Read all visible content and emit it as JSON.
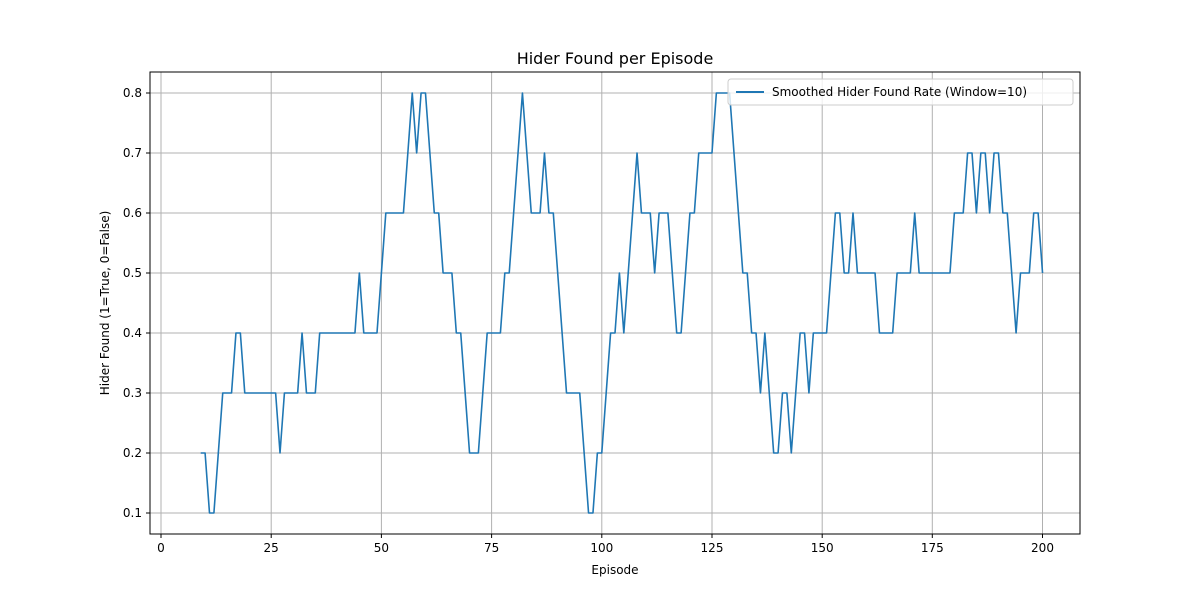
{
  "chart_data": {
    "type": "line",
    "title": "Hider Found per Episode",
    "xlabel": "Episode",
    "ylabel": "Hider Found (1=True, 0=False)",
    "xlim": [
      -2.5,
      208.5
    ],
    "ylim": [
      0.065,
      0.835
    ],
    "xticks": [
      0,
      25,
      50,
      75,
      100,
      125,
      150,
      175,
      200
    ],
    "yticks": [
      0.1,
      0.2,
      0.3,
      0.4,
      0.5,
      0.6,
      0.7,
      0.8
    ],
    "xtick_labels": [
      "0",
      "25",
      "50",
      "75",
      "100",
      "125",
      "150",
      "175",
      "200"
    ],
    "ytick_labels": [
      "0.1",
      "0.2",
      "0.3",
      "0.4",
      "0.5",
      "0.6",
      "0.7",
      "0.8"
    ],
    "grid": true,
    "legend": {
      "position": "top-right"
    },
    "series": [
      {
        "name": "Smoothed Hider Found Rate (Window=10)",
        "color": "#1f77b4",
        "x_start": 9,
        "values": [
          0.2,
          0.2,
          0.1,
          0.1,
          0.2,
          0.3,
          0.3,
          0.3,
          0.4,
          0.4,
          0.3,
          0.3,
          0.3,
          0.3,
          0.3,
          0.3,
          0.3,
          0.3,
          0.2,
          0.3,
          0.3,
          0.3,
          0.3,
          0.4,
          0.3,
          0.3,
          0.3,
          0.4,
          0.4,
          0.4,
          0.4,
          0.4,
          0.4,
          0.4,
          0.4,
          0.4,
          0.5,
          0.4,
          0.4,
          0.4,
          0.4,
          0.5,
          0.6,
          0.6,
          0.6,
          0.6,
          0.6,
          0.7,
          0.8,
          0.7,
          0.8,
          0.8,
          0.7,
          0.6,
          0.6,
          0.5,
          0.5,
          0.5,
          0.4,
          0.4,
          0.3,
          0.2,
          0.2,
          0.2,
          0.3,
          0.4,
          0.4,
          0.4,
          0.4,
          0.5,
          0.5,
          0.6,
          0.7,
          0.8,
          0.7,
          0.6,
          0.6,
          0.6,
          0.7,
          0.6,
          0.6,
          0.5,
          0.4,
          0.3,
          0.3,
          0.3,
          0.3,
          0.2,
          0.1,
          0.1,
          0.2,
          0.2,
          0.3,
          0.4,
          0.4,
          0.5,
          0.4,
          0.5,
          0.6,
          0.7,
          0.6,
          0.6,
          0.6,
          0.5,
          0.6,
          0.6,
          0.6,
          0.5,
          0.4,
          0.4,
          0.5,
          0.6,
          0.6,
          0.7,
          0.7,
          0.7,
          0.7,
          0.8,
          0.8,
          0.8,
          0.8,
          0.7,
          0.6,
          0.5,
          0.5,
          0.4,
          0.4,
          0.3,
          0.4,
          0.3,
          0.2,
          0.2,
          0.3,
          0.3,
          0.2,
          0.3,
          0.4,
          0.4,
          0.3,
          0.4,
          0.4,
          0.4,
          0.4,
          0.5,
          0.6,
          0.6,
          0.5,
          0.5,
          0.6,
          0.5,
          0.5,
          0.5,
          0.5,
          0.5,
          0.4,
          0.4,
          0.4,
          0.4,
          0.5,
          0.5,
          0.5,
          0.5,
          0.6,
          0.5,
          0.5,
          0.5,
          0.5,
          0.5,
          0.5,
          0.5,
          0.5,
          0.6,
          0.6,
          0.6,
          0.7,
          0.7,
          0.6,
          0.7,
          0.7,
          0.6,
          0.7,
          0.7,
          0.6,
          0.6,
          0.5,
          0.4,
          0.5,
          0.5,
          0.5,
          0.6,
          0.6,
          0.5
        ]
      }
    ]
  }
}
